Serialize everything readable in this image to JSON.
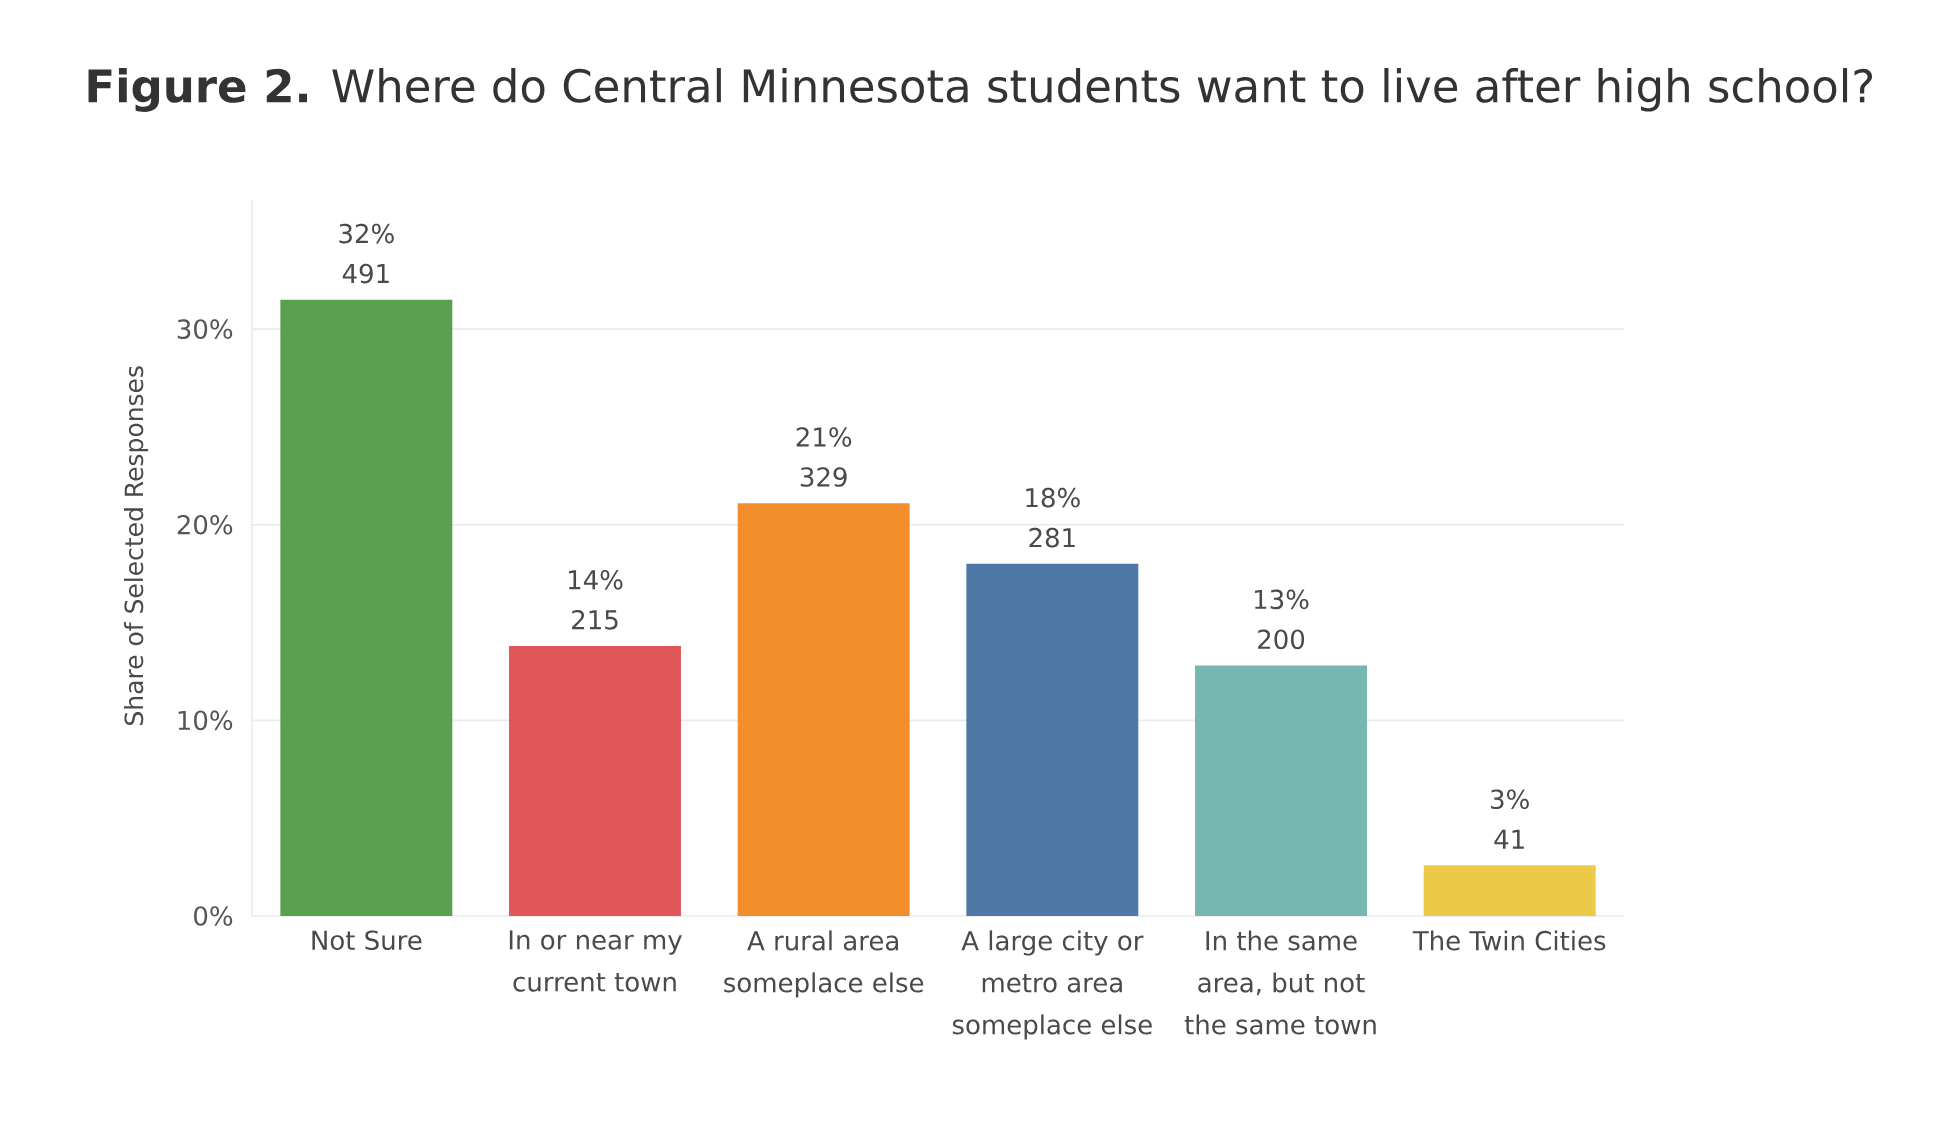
{
  "chart_data": {
    "type": "bar",
    "title": "**Figure 2.** Where do Central Minnesota students want to live after high school?",
    "ylabel": "Share of Selected Responses",
    "categories": [
      "Not Sure",
      "In or near my current town",
      "A rural area someplace else",
      "A large city or metro area someplace else",
      "In the same area, but not the same town",
      "The Twin Cities"
    ],
    "values": [
      31.5,
      13.8,
      21.1,
      18.0,
      12.8,
      2.6
    ],
    "colors": [
      "#59a14f",
      "#e15759",
      "#f28e2b",
      "#4e79a7",
      "#76b7b2",
      "#edc948"
    ],
    "value_labels": [
      "32% 491",
      "14% 215",
      "21% 329",
      "18% 281",
      "13% 200",
      "3% 41"
    ],
    "ylim": [
      0,
      36.6
    ],
    "yticks": [
      {
        "value": 0,
        "label": "0%"
      },
      {
        "value": 10,
        "label": "10%"
      },
      {
        "value": 20,
        "label": "20%"
      },
      {
        "value": 30,
        "label": "30%"
      }
    ],
    "grid": "y"
  }
}
